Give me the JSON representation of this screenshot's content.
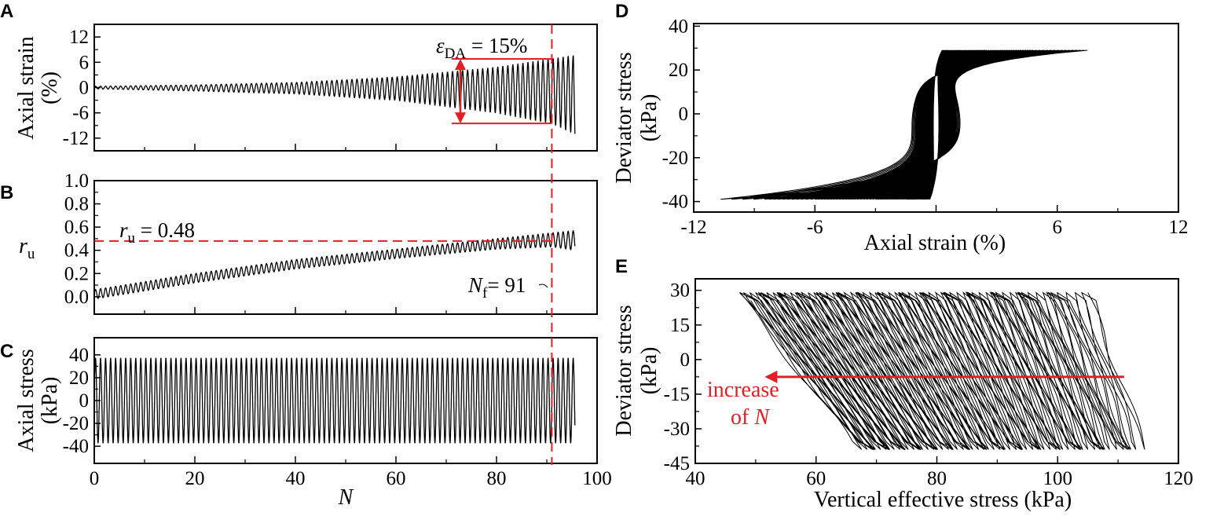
{
  "colors": {
    "annotation": "#e31e24",
    "data": "#000000"
  },
  "panel_letters": [
    "A",
    "B",
    "C",
    "D",
    "E"
  ],
  "annotations": {
    "eps": {
      "symbol": "ε",
      "sub": "DA",
      "rest": " = 15%"
    },
    "ru": {
      "symbol": "r",
      "sub": "u",
      "rest": " = 0.48"
    },
    "nf": {
      "symbol": "N",
      "sub": "f",
      "rest": "= 91"
    },
    "increase": "increase",
    "of_n": {
      "pre": "of ",
      "sym": "N"
    }
  },
  "chart_data": [
    {
      "id": "A",
      "type": "line",
      "ylabel_lines": [
        "Axial strain",
        "(%)"
      ],
      "xlim": [
        0,
        100
      ],
      "ylim": [
        -15,
        15
      ],
      "yticks": [
        "12",
        "6",
        "0",
        "-6",
        "-12"
      ],
      "xticks": [
        0,
        20,
        40,
        60,
        80,
        100
      ],
      "cycles_end": 95.6,
      "envelope_N": [
        0,
        20,
        40,
        60,
        80,
        91,
        95.6
      ],
      "peak": [
        0.3,
        0.6,
        1.2,
        2.5,
        4.8,
        6.8,
        7.6
      ],
      "trough": [
        -0.3,
        -0.8,
        -1.5,
        -3.0,
        -6.0,
        -8.5,
        -11.0
      ],
      "failure_N": 91,
      "eps_da_band": [
        6.8,
        -8.5
      ]
    },
    {
      "id": "B",
      "type": "line",
      "ylabel": {
        "symbol": "r",
        "sub": "u"
      },
      "xlim": [
        0,
        100
      ],
      "ylim": [
        -0.15,
        1.0
      ],
      "yticks": [
        "1.0",
        "0.8",
        "0.6",
        "0.4",
        "0.2",
        "0.0"
      ],
      "xticks": [
        0,
        20,
        40,
        60,
        80,
        100
      ],
      "cycles_end": 95.6,
      "envelope_N": [
        0,
        20,
        40,
        60,
        80,
        91,
        95.6
      ],
      "peak": [
        0.06,
        0.2,
        0.32,
        0.41,
        0.5,
        0.55,
        0.57
      ],
      "trough": [
        -0.02,
        0.12,
        0.24,
        0.33,
        0.41,
        0.43,
        0.4
      ],
      "threshold": 0.48
    },
    {
      "id": "C",
      "type": "line",
      "ylabel_lines": [
        "Axial stress",
        "(kPa)"
      ],
      "xlabel": "N",
      "xlim": [
        0,
        100
      ],
      "ylim": [
        -55,
        55
      ],
      "yticks": [
        "40",
        "20",
        "0",
        "-20",
        "-40"
      ],
      "xticks": [
        0,
        20,
        40,
        60,
        80,
        100
      ],
      "xticklabels": [
        "0",
        "20",
        "40",
        "60",
        "80",
        "100"
      ],
      "cycles_end": 95.6,
      "amplitude": 37
    },
    {
      "id": "D",
      "type": "line",
      "ylabel_lines": [
        "Deviator stress",
        "(kPa)"
      ],
      "xlabel": "Axial strain (%)",
      "xlim": [
        -12,
        12
      ],
      "ylim": [
        -44.8,
        41.2
      ],
      "yticks": [
        "40",
        "20",
        "0",
        "-20",
        "-40"
      ],
      "xticks": [
        -12,
        -6,
        0,
        6,
        12
      ],
      "xticklabels": [
        "-12",
        "-6",
        "",
        "6",
        "12"
      ],
      "q_max": 29,
      "q_min": -39
    },
    {
      "id": "E",
      "type": "line",
      "ylabel_lines": [
        "Deviator stress",
        "(kPa)"
      ],
      "xlabel": "Vertical effective stress (kPa)",
      "xlim": [
        40,
        120
      ],
      "ylim": [
        -45,
        35
      ],
      "yticks": [
        "30",
        "15",
        "0",
        "-15",
        "-30",
        "-45"
      ],
      "xticks": [
        40,
        60,
        80,
        100,
        120
      ],
      "xticklabels": [
        "40",
        "60",
        "80",
        "100",
        "120"
      ],
      "p_top_range": [
        105,
        47
      ],
      "p_bottom_range": [
        114,
        67
      ],
      "q_max": 29,
      "q_min": -39,
      "arrow": {
        "from": [
          111,
          -7.5
        ],
        "to": [
          51.5,
          -7.5
        ]
      }
    }
  ]
}
